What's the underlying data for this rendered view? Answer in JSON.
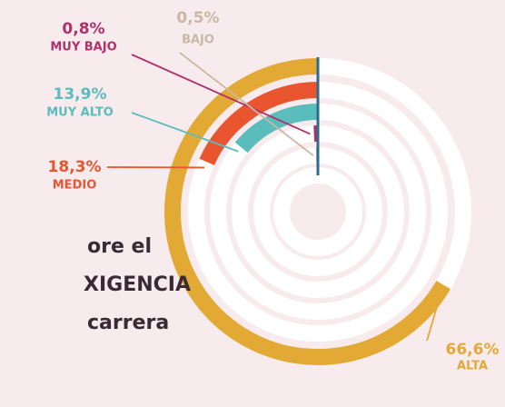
{
  "chart_data": {
    "type": "radial_bar",
    "text_lines": [
      "ore el",
      "XIGENCIA",
      "carrera"
    ],
    "max": 100,
    "series": [
      {
        "name": "ALTA",
        "value": 66.6,
        "value_label": "66,6%",
        "color": "#e3a935"
      },
      {
        "name": "MEDIO",
        "value": 18.3,
        "value_label": "18,3%",
        "color": "#e8552e"
      },
      {
        "name": "MUY ALTO",
        "value": 13.9,
        "value_label": "13,9%",
        "color": "#5bbcbc"
      },
      {
        "name": "MUY BAJO",
        "value": 0.8,
        "value_label": "0,8%",
        "color": "#b0306a"
      },
      {
        "name": "BAJO",
        "value": 0.5,
        "value_label": "0,5%",
        "color": "#c9b8a3"
      }
    ]
  }
}
